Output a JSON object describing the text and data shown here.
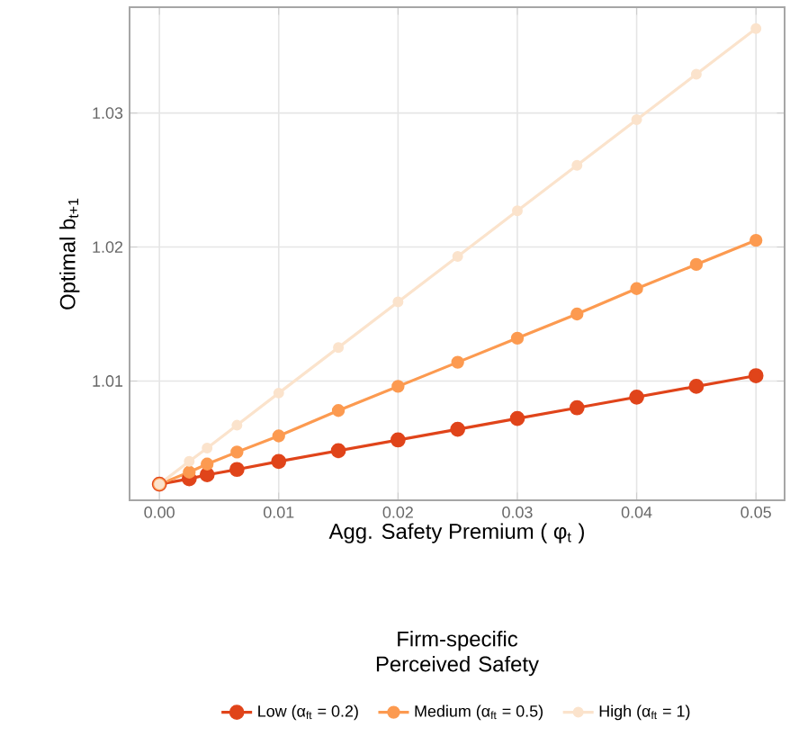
{
  "chart_data": {
    "type": "line",
    "xlabel": "Agg. Safety Premium ( φ$_{t}$ )",
    "ylabel": "Optimal b$_{t+1}$",
    "legend_title": "Firm-specific Perceived Safety",
    "x": [
      0,
      0.0025,
      0.004,
      0.0065,
      0.01,
      0.015,
      0.02,
      0.025,
      0.03,
      0.035,
      0.04,
      0.045,
      0.05
    ],
    "series": [
      {
        "name": "Low (α$_{ft}$ = 0.2)",
        "color": "#e0441a",
        "values": [
          1.0023,
          1.0027,
          1.003,
          1.0034,
          1.004,
          1.0048,
          1.0056,
          1.0064,
          1.0072,
          1.008,
          1.0088,
          1.0096,
          1.0104
        ]
      },
      {
        "name": "Medium (α$_{ft}$ = 0.5)",
        "color": "#fc9a50",
        "values": [
          1.0023,
          1.0032,
          1.0038,
          1.0047,
          1.0059,
          1.0078,
          1.0096,
          1.0114,
          1.0132,
          1.015,
          1.0169,
          1.0187,
          1.0205
        ]
      },
      {
        "name": "High (α$_{ft}$ = 1)",
        "color": "#fbe3cc",
        "values": [
          1.0023,
          1.004,
          1.005,
          1.0067,
          1.0091,
          1.0125,
          1.0159,
          1.0193,
          1.0227,
          1.0261,
          1.0295,
          1.0329,
          1.0363
        ]
      }
    ],
    "xlim": [
      -0.0025,
      0.0524
    ],
    "ylim": [
      1.0011,
      1.0379
    ],
    "xticks": [
      {
        "value": 0,
        "label": "0.00"
      },
      {
        "value": 0.01,
        "label": "0.01"
      },
      {
        "value": 0.02,
        "label": "0.02"
      },
      {
        "value": 0.03,
        "label": "0.03"
      },
      {
        "value": 0.04,
        "label": "0.04"
      },
      {
        "value": 0.05,
        "label": "0.05"
      }
    ],
    "yticks": [
      1.01,
      1.02,
      1.03
    ],
    "grid": true,
    "legend": "bottom",
    "marker": "circle",
    "line_style": "solid"
  }
}
